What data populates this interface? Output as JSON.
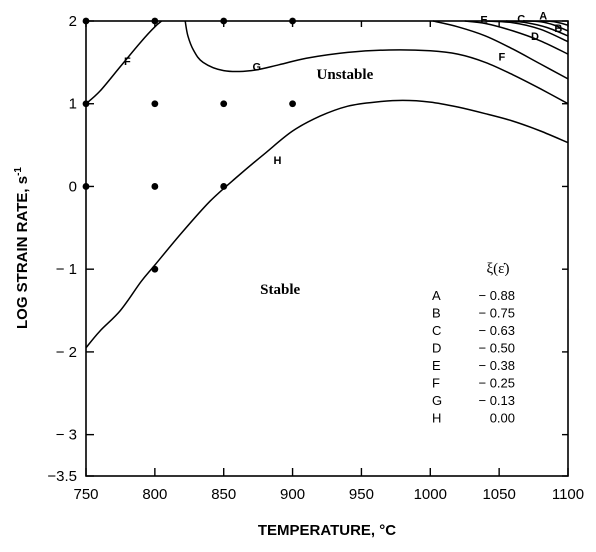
{
  "chart_data": {
    "type": "line",
    "xlabel": "TEMPERATURE, °C",
    "ylabel": "LOG STRAIN RATE, s",
    "ylabel_superscript": "-1",
    "xlim": [
      750,
      1100
    ],
    "ylim": [
      -3.5,
      2
    ],
    "x_ticks": [
      750,
      800,
      850,
      900,
      950,
      1000,
      1050,
      1100
    ],
    "y_ticks": [
      2,
      1,
      0,
      -1,
      -2,
      -3,
      -3.5
    ],
    "y_tick_labels": [
      "2",
      "1",
      "0",
      "− 1",
      "− 2",
      "− 3",
      "−3.5"
    ],
    "grid": false,
    "region_labels": [
      {
        "text": "Unstable",
        "x": 938,
        "y": 1.3
      },
      {
        "text": "Stable",
        "x": 891,
        "y": -1.3
      }
    ],
    "legend": {
      "title": "ξ(ε̇)",
      "placement": "lower-right",
      "entries": [
        {
          "label": "A",
          "value": "− 0.88"
        },
        {
          "label": "B",
          "value": "− 0.75"
        },
        {
          "label": "C",
          "value": "− 0.63"
        },
        {
          "label": "D",
          "value": "− 0.50"
        },
        {
          "label": "E",
          "value": "− 0.38"
        },
        {
          "label": "F",
          "value": "− 0.25"
        },
        {
          "label": "G",
          "value": "− 0.13"
        },
        {
          "label": "H",
          "value": "0.00"
        }
      ]
    },
    "data_points": [
      {
        "x": 750,
        "y": 2
      },
      {
        "x": 800,
        "y": 2
      },
      {
        "x": 850,
        "y": 2
      },
      {
        "x": 900,
        "y": 2
      },
      {
        "x": 750,
        "y": 1
      },
      {
        "x": 800,
        "y": 1
      },
      {
        "x": 850,
        "y": 1
      },
      {
        "x": 900,
        "y": 1
      },
      {
        "x": 750,
        "y": 0
      },
      {
        "x": 800,
        "y": 0
      },
      {
        "x": 850,
        "y": 0
      },
      {
        "x": 800,
        "y": -1
      }
    ],
    "series": [
      {
        "name": "H",
        "label_at": {
          "x": 889,
          "y": 0.27
        },
        "x": [
          750,
          760,
          775,
          790,
          800,
          820,
          840,
          860,
          880,
          900,
          920,
          940,
          960,
          980,
          1000,
          1020,
          1040,
          1060,
          1080,
          1100
        ],
        "y": [
          -1.95,
          -1.75,
          -1.5,
          -1.15,
          -0.95,
          -0.55,
          -0.18,
          0.12,
          0.4,
          0.67,
          0.85,
          0.97,
          1.02,
          1.04,
          1.02,
          0.96,
          0.88,
          0.79,
          0.67,
          0.53
        ]
      },
      {
        "name": "G",
        "label_at": {
          "x": 874,
          "y": 1.4
        },
        "x": [
          822,
          824,
          828,
          835,
          850,
          870,
          890,
          910,
          940,
          970,
          1000,
          1020,
          1040,
          1060,
          1080,
          1100
        ],
        "y": [
          2,
          1.82,
          1.65,
          1.5,
          1.4,
          1.4,
          1.47,
          1.55,
          1.62,
          1.65,
          1.64,
          1.6,
          1.5,
          1.35,
          1.18,
          1.0
        ]
      },
      {
        "name": "F",
        "label_at": {
          "x": 780,
          "y": 1.47
        },
        "x": [
          750,
          760,
          775,
          790,
          800,
          805
        ],
        "y": [
          1,
          1.15,
          1.45,
          1.75,
          1.93,
          2
        ]
      },
      {
        "name": "F",
        "label_at": {
          "x": 1052,
          "y": 1.52
        },
        "x": [
          1002,
          1020,
          1040,
          1060,
          1080,
          1100
        ],
        "y": [
          2,
          1.93,
          1.82,
          1.66,
          1.48,
          1.3
        ]
      },
      {
        "name": "E",
        "label_at": {
          "x": 1039,
          "y": 1.97
        },
        "x": [
          1025,
          1040,
          1060,
          1080,
          1100
        ],
        "y": [
          2,
          1.97,
          1.88,
          1.76,
          1.6
        ]
      },
      {
        "name": "D",
        "label_at": {
          "x": 1076,
          "y": 1.77
        },
        "x": [
          1040,
          1060,
          1080,
          1100
        ],
        "y": [
          2,
          1.98,
          1.9,
          1.75
        ]
      },
      {
        "name": "C",
        "label_at": {
          "x": 1066,
          "y": 1.98
        },
        "x": [
          1055,
          1070,
          1085,
          1100
        ],
        "y": [
          2,
          1.98,
          1.92,
          1.82
        ]
      },
      {
        "name": "B",
        "label_at": {
          "x": 1093,
          "y": 1.87
        },
        "x": [
          1068,
          1080,
          1090,
          1100
        ],
        "y": [
          2,
          1.99,
          1.95,
          1.88
        ]
      },
      {
        "name": "A",
        "label_at": {
          "x": 1082,
          "y": 2.02
        },
        "x": [
          1080,
          1090,
          1100
        ],
        "y": [
          2,
          1.99,
          1.95
        ]
      }
    ]
  }
}
